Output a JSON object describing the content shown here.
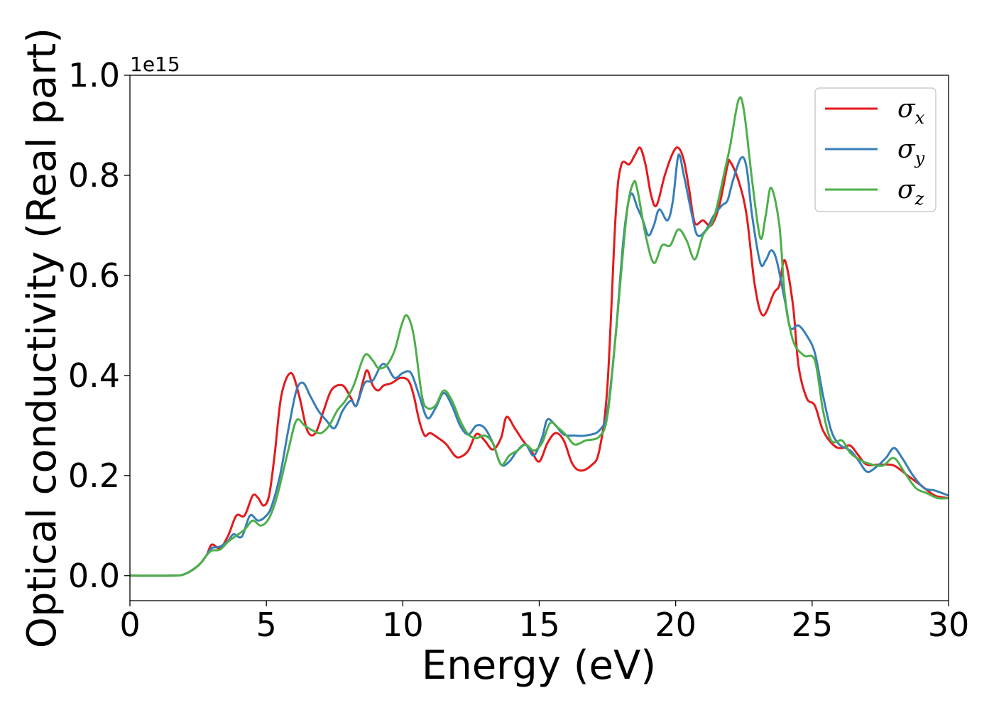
{
  "chart_data": {
    "type": "line",
    "title": "",
    "xlabel": "Energy (eV)",
    "ylabel": "Optical conductivity (Real part)",
    "y_offset_label": "1e15",
    "xlim": [
      0,
      30
    ],
    "ylim": [
      -0.05,
      1.0
    ],
    "x_ticks": [
      0,
      5,
      10,
      15,
      20,
      25,
      30
    ],
    "x_tick_labels": [
      "0",
      "5",
      "10",
      "15",
      "20",
      "25",
      "30"
    ],
    "y_ticks": [
      0.0,
      0.2,
      0.4,
      0.6,
      0.8,
      1.0
    ],
    "y_tick_labels": [
      "0.0",
      "0.2",
      "0.4",
      "0.6",
      "0.8",
      "1.0"
    ],
    "grid": false,
    "legend_position": "top-right",
    "series": [
      {
        "name": "σx",
        "symbol": "σ",
        "subscript": "x",
        "color": "#e41a1c",
        "points": [
          [
            0,
            0.0
          ],
          [
            1.5,
            0.0
          ],
          [
            2.0,
            0.003
          ],
          [
            2.5,
            0.02
          ],
          [
            2.8,
            0.04
          ],
          [
            3.0,
            0.062
          ],
          [
            3.3,
            0.055
          ],
          [
            3.6,
            0.08
          ],
          [
            3.9,
            0.12
          ],
          [
            4.2,
            0.12
          ],
          [
            4.5,
            0.16
          ],
          [
            4.7,
            0.155
          ],
          [
            4.9,
            0.14
          ],
          [
            5.1,
            0.16
          ],
          [
            5.3,
            0.24
          ],
          [
            5.55,
            0.36
          ],
          [
            5.9,
            0.405
          ],
          [
            6.2,
            0.36
          ],
          [
            6.5,
            0.29
          ],
          [
            6.8,
            0.285
          ],
          [
            7.1,
            0.33
          ],
          [
            7.4,
            0.372
          ],
          [
            7.8,
            0.38
          ],
          [
            8.1,
            0.355
          ],
          [
            8.3,
            0.34
          ],
          [
            8.55,
            0.39
          ],
          [
            8.7,
            0.41
          ],
          [
            8.9,
            0.38
          ],
          [
            9.1,
            0.37
          ],
          [
            9.3,
            0.38
          ],
          [
            9.6,
            0.385
          ],
          [
            9.9,
            0.395
          ],
          [
            10.2,
            0.39
          ],
          [
            10.4,
            0.36
          ],
          [
            10.6,
            0.31
          ],
          [
            10.8,
            0.28
          ],
          [
            11.0,
            0.285
          ],
          [
            11.3,
            0.275
          ],
          [
            11.6,
            0.262
          ],
          [
            11.9,
            0.24
          ],
          [
            12.1,
            0.237
          ],
          [
            12.4,
            0.25
          ],
          [
            12.7,
            0.283
          ],
          [
            13.0,
            0.27
          ],
          [
            13.3,
            0.252
          ],
          [
            13.6,
            0.275
          ],
          [
            13.8,
            0.317
          ],
          [
            14.1,
            0.295
          ],
          [
            14.4,
            0.27
          ],
          [
            14.7,
            0.25
          ],
          [
            15.0,
            0.228
          ],
          [
            15.3,
            0.265
          ],
          [
            15.6,
            0.285
          ],
          [
            15.9,
            0.27
          ],
          [
            16.2,
            0.225
          ],
          [
            16.5,
            0.21
          ],
          [
            16.9,
            0.22
          ],
          [
            17.2,
            0.25
          ],
          [
            17.5,
            0.38
          ],
          [
            17.8,
            0.72
          ],
          [
            18.0,
            0.82
          ],
          [
            18.3,
            0.822
          ],
          [
            18.5,
            0.84
          ],
          [
            18.7,
            0.855
          ],
          [
            18.9,
            0.82
          ],
          [
            19.1,
            0.76
          ],
          [
            19.3,
            0.74
          ],
          [
            19.6,
            0.8
          ],
          [
            19.9,
            0.845
          ],
          [
            20.1,
            0.855
          ],
          [
            20.3,
            0.83
          ],
          [
            20.5,
            0.77
          ],
          [
            20.7,
            0.705
          ],
          [
            21.0,
            0.71
          ],
          [
            21.3,
            0.7
          ],
          [
            21.6,
            0.74
          ],
          [
            21.9,
            0.82
          ],
          [
            22.0,
            0.827
          ],
          [
            22.3,
            0.79
          ],
          [
            22.6,
            0.72
          ],
          [
            22.9,
            0.58
          ],
          [
            23.2,
            0.52
          ],
          [
            23.6,
            0.565
          ],
          [
            23.8,
            0.58
          ],
          [
            24.0,
            0.63
          ],
          [
            24.3,
            0.54
          ],
          [
            24.5,
            0.42
          ],
          [
            24.8,
            0.355
          ],
          [
            25.1,
            0.34
          ],
          [
            25.4,
            0.29
          ],
          [
            25.8,
            0.26
          ],
          [
            26.1,
            0.255
          ],
          [
            26.4,
            0.26
          ],
          [
            26.7,
            0.24
          ],
          [
            27.0,
            0.222
          ],
          [
            27.5,
            0.222
          ],
          [
            28.0,
            0.22
          ],
          [
            28.5,
            0.2
          ],
          [
            29.0,
            0.18
          ],
          [
            29.5,
            0.16
          ],
          [
            30.0,
            0.155
          ]
        ]
      },
      {
        "name": "σy",
        "symbol": "σ",
        "subscript": "y",
        "color": "#377eb8",
        "points": [
          [
            0,
            0.0
          ],
          [
            1.5,
            0.0
          ],
          [
            2.0,
            0.003
          ],
          [
            2.5,
            0.02
          ],
          [
            2.8,
            0.04
          ],
          [
            3.0,
            0.055
          ],
          [
            3.3,
            0.058
          ],
          [
            3.6,
            0.07
          ],
          [
            3.8,
            0.083
          ],
          [
            4.1,
            0.078
          ],
          [
            4.4,
            0.12
          ],
          [
            4.7,
            0.11
          ],
          [
            5.0,
            0.12
          ],
          [
            5.2,
            0.14
          ],
          [
            5.5,
            0.2
          ],
          [
            5.8,
            0.29
          ],
          [
            6.1,
            0.37
          ],
          [
            6.35,
            0.385
          ],
          [
            6.6,
            0.36
          ],
          [
            6.9,
            0.33
          ],
          [
            7.2,
            0.31
          ],
          [
            7.5,
            0.295
          ],
          [
            7.8,
            0.33
          ],
          [
            8.1,
            0.35
          ],
          [
            8.3,
            0.34
          ],
          [
            8.6,
            0.385
          ],
          [
            8.9,
            0.39
          ],
          [
            9.2,
            0.42
          ],
          [
            9.4,
            0.42
          ],
          [
            9.7,
            0.395
          ],
          [
            10.0,
            0.405
          ],
          [
            10.3,
            0.405
          ],
          [
            10.6,
            0.36
          ],
          [
            10.9,
            0.315
          ],
          [
            11.2,
            0.335
          ],
          [
            11.5,
            0.365
          ],
          [
            11.8,
            0.34
          ],
          [
            12.1,
            0.3
          ],
          [
            12.4,
            0.282
          ],
          [
            12.7,
            0.3
          ],
          [
            13.0,
            0.295
          ],
          [
            13.3,
            0.265
          ],
          [
            13.6,
            0.222
          ],
          [
            13.9,
            0.228
          ],
          [
            14.2,
            0.25
          ],
          [
            14.5,
            0.262
          ],
          [
            14.8,
            0.24
          ],
          [
            15.1,
            0.275
          ],
          [
            15.3,
            0.312
          ],
          [
            15.6,
            0.3
          ],
          [
            15.9,
            0.282
          ],
          [
            16.3,
            0.28
          ],
          [
            16.7,
            0.28
          ],
          [
            17.2,
            0.29
          ],
          [
            17.5,
            0.33
          ],
          [
            17.8,
            0.48
          ],
          [
            18.1,
            0.68
          ],
          [
            18.35,
            0.762
          ],
          [
            18.6,
            0.735
          ],
          [
            18.8,
            0.71
          ],
          [
            19.0,
            0.68
          ],
          [
            19.2,
            0.7
          ],
          [
            19.4,
            0.732
          ],
          [
            19.7,
            0.71
          ],
          [
            19.9,
            0.75
          ],
          [
            20.1,
            0.84
          ],
          [
            20.3,
            0.8
          ],
          [
            20.6,
            0.72
          ],
          [
            20.8,
            0.68
          ],
          [
            21.1,
            0.69
          ],
          [
            21.4,
            0.72
          ],
          [
            21.7,
            0.74
          ],
          [
            21.9,
            0.75
          ],
          [
            22.1,
            0.79
          ],
          [
            22.4,
            0.835
          ],
          [
            22.6,
            0.815
          ],
          [
            22.8,
            0.72
          ],
          [
            23.1,
            0.625
          ],
          [
            23.3,
            0.63
          ],
          [
            23.5,
            0.65
          ],
          [
            23.7,
            0.63
          ],
          [
            24.0,
            0.55
          ],
          [
            24.2,
            0.495
          ],
          [
            24.5,
            0.5
          ],
          [
            24.8,
            0.48
          ],
          [
            25.1,
            0.445
          ],
          [
            25.4,
            0.36
          ],
          [
            25.7,
            0.29
          ],
          [
            26.0,
            0.262
          ],
          [
            26.4,
            0.25
          ],
          [
            26.7,
            0.23
          ],
          [
            27.0,
            0.208
          ],
          [
            27.3,
            0.215
          ],
          [
            27.7,
            0.235
          ],
          [
            28.0,
            0.255
          ],
          [
            28.3,
            0.235
          ],
          [
            28.7,
            0.2
          ],
          [
            29.1,
            0.175
          ],
          [
            29.5,
            0.17
          ],
          [
            30.0,
            0.16
          ]
        ]
      },
      {
        "name": "σz",
        "symbol": "σ",
        "subscript": "z",
        "color": "#4daf4a",
        "points": [
          [
            0,
            0.0
          ],
          [
            1.5,
            0.0
          ],
          [
            2.0,
            0.003
          ],
          [
            2.5,
            0.02
          ],
          [
            2.8,
            0.04
          ],
          [
            3.0,
            0.05
          ],
          [
            3.3,
            0.052
          ],
          [
            3.6,
            0.068
          ],
          [
            3.9,
            0.08
          ],
          [
            4.2,
            0.092
          ],
          [
            4.5,
            0.11
          ],
          [
            4.8,
            0.1
          ],
          [
            5.1,
            0.115
          ],
          [
            5.4,
            0.16
          ],
          [
            5.8,
            0.25
          ],
          [
            6.1,
            0.31
          ],
          [
            6.4,
            0.3
          ],
          [
            6.7,
            0.29
          ],
          [
            7.0,
            0.285
          ],
          [
            7.3,
            0.3
          ],
          [
            7.6,
            0.33
          ],
          [
            7.9,
            0.35
          ],
          [
            8.2,
            0.38
          ],
          [
            8.6,
            0.44
          ],
          [
            8.9,
            0.43
          ],
          [
            9.1,
            0.415
          ],
          [
            9.4,
            0.42
          ],
          [
            9.7,
            0.45
          ],
          [
            9.95,
            0.5
          ],
          [
            10.15,
            0.52
          ],
          [
            10.4,
            0.48
          ],
          [
            10.7,
            0.36
          ],
          [
            10.9,
            0.335
          ],
          [
            11.2,
            0.34
          ],
          [
            11.5,
            0.37
          ],
          [
            11.8,
            0.35
          ],
          [
            12.1,
            0.31
          ],
          [
            12.4,
            0.282
          ],
          [
            12.7,
            0.275
          ],
          [
            13.0,
            0.28
          ],
          [
            13.3,
            0.265
          ],
          [
            13.6,
            0.222
          ],
          [
            13.9,
            0.24
          ],
          [
            14.2,
            0.25
          ],
          [
            14.5,
            0.262
          ],
          [
            14.8,
            0.25
          ],
          [
            15.1,
            0.265
          ],
          [
            15.4,
            0.305
          ],
          [
            15.7,
            0.295
          ],
          [
            16.0,
            0.28
          ],
          [
            16.3,
            0.262
          ],
          [
            16.7,
            0.27
          ],
          [
            17.2,
            0.278
          ],
          [
            17.5,
            0.32
          ],
          [
            17.8,
            0.48
          ],
          [
            18.2,
            0.72
          ],
          [
            18.45,
            0.785
          ],
          [
            18.6,
            0.77
          ],
          [
            18.9,
            0.68
          ],
          [
            19.2,
            0.625
          ],
          [
            19.5,
            0.66
          ],
          [
            19.8,
            0.66
          ],
          [
            20.1,
            0.692
          ],
          [
            20.4,
            0.67
          ],
          [
            20.7,
            0.632
          ],
          [
            21.0,
            0.68
          ],
          [
            21.4,
            0.715
          ],
          [
            21.8,
            0.81
          ],
          [
            22.0,
            0.86
          ],
          [
            22.3,
            0.95
          ],
          [
            22.5,
            0.93
          ],
          [
            22.8,
            0.79
          ],
          [
            23.1,
            0.675
          ],
          [
            23.3,
            0.72
          ],
          [
            23.5,
            0.775
          ],
          [
            23.8,
            0.7
          ],
          [
            24.0,
            0.56
          ],
          [
            24.3,
            0.47
          ],
          [
            24.7,
            0.44
          ],
          [
            25.1,
            0.43
          ],
          [
            25.4,
            0.33
          ],
          [
            25.7,
            0.27
          ],
          [
            26.1,
            0.27
          ],
          [
            26.4,
            0.245
          ],
          [
            26.8,
            0.23
          ],
          [
            27.2,
            0.222
          ],
          [
            27.6,
            0.22
          ],
          [
            28.0,
            0.235
          ],
          [
            28.4,
            0.205
          ],
          [
            28.8,
            0.175
          ],
          [
            29.2,
            0.165
          ],
          [
            29.6,
            0.155
          ],
          [
            30.0,
            0.155
          ]
        ]
      }
    ]
  }
}
